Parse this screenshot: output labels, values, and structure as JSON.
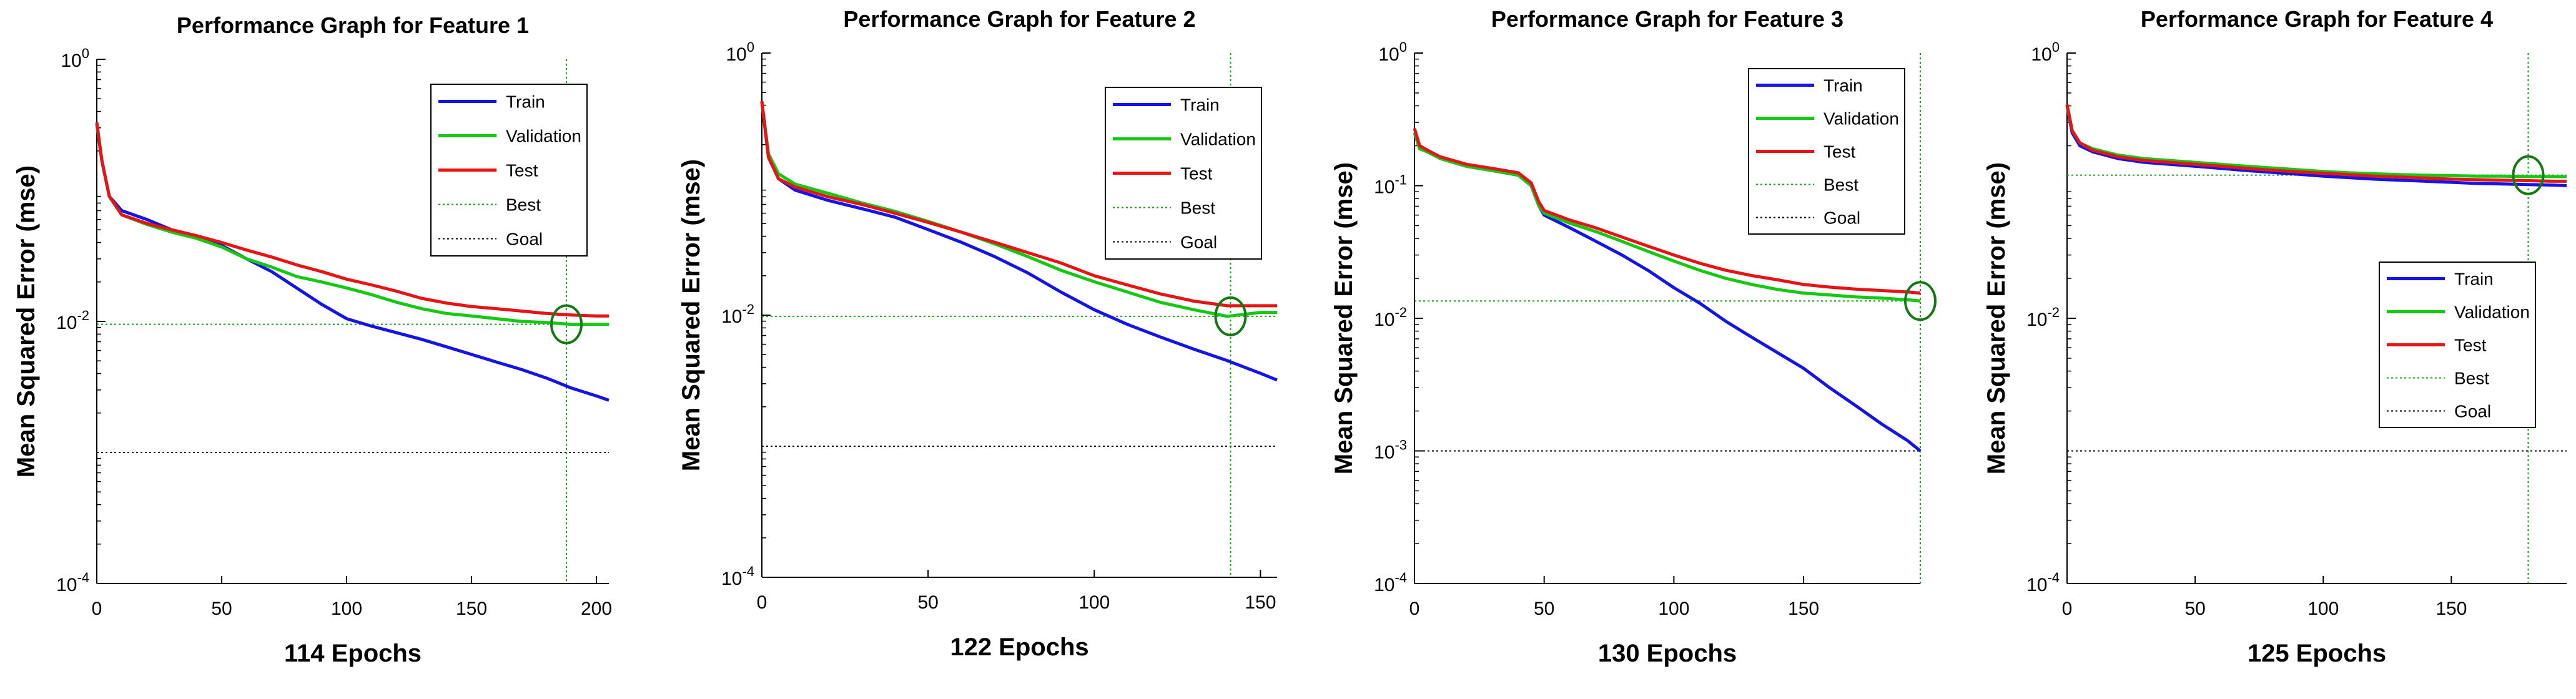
{
  "chart_data": [
    {
      "type": "line",
      "title": "Performance Graph for Feature 1",
      "xlabel": "114 Epochs",
      "ylabel": "Mean Squared Error  (mse)",
      "yscale": "log",
      "xlim": [
        0,
        205
      ],
      "ylim": [
        0.0001,
        1
      ],
      "xticks": [
        0,
        50,
        100,
        150,
        200
      ],
      "yticks": [
        {
          "base": "10",
          "exp": "0",
          "value": 1
        },
        {
          "base": "10",
          "exp": "-2",
          "value": 0.01
        },
        {
          "base": "10",
          "exp": "-4",
          "value": 0.0001
        }
      ],
      "legend_position": "top-right",
      "best_epoch": 188,
      "best_value": 0.0095,
      "goal": 0.001,
      "series": [
        {
          "name": "Train",
          "color": "#1414e6",
          "x": [
            0,
            2,
            5,
            10,
            20,
            30,
            40,
            50,
            60,
            70,
            80,
            90,
            100,
            110,
            120,
            130,
            140,
            150,
            160,
            170,
            180,
            190,
            200,
            205
          ],
          "y": [
            0.32,
            0.17,
            0.09,
            0.07,
            0.06,
            0.05,
            0.045,
            0.038,
            0.03,
            0.024,
            0.018,
            0.0135,
            0.0105,
            0.0092,
            0.0082,
            0.0073,
            0.0064,
            0.0056,
            0.0049,
            0.0043,
            0.0037,
            0.0031,
            0.0027,
            0.0025
          ]
        },
        {
          "name": "Validation",
          "color": "#14c814",
          "x": [
            0,
            2,
            5,
            10,
            20,
            30,
            40,
            50,
            60,
            70,
            80,
            90,
            100,
            110,
            120,
            130,
            140,
            150,
            160,
            170,
            180,
            190,
            200,
            205
          ],
          "y": [
            0.32,
            0.17,
            0.09,
            0.065,
            0.055,
            0.048,
            0.043,
            0.037,
            0.03,
            0.026,
            0.022,
            0.02,
            0.018,
            0.016,
            0.014,
            0.0125,
            0.0115,
            0.011,
            0.0105,
            0.01,
            0.0098,
            0.0095,
            0.0095,
            0.0095
          ]
        },
        {
          "name": "Test",
          "color": "#e61414",
          "x": [
            0,
            2,
            5,
            10,
            20,
            30,
            40,
            50,
            60,
            70,
            80,
            90,
            100,
            110,
            120,
            130,
            140,
            150,
            160,
            170,
            180,
            190,
            200,
            205
          ],
          "y": [
            0.33,
            0.17,
            0.09,
            0.065,
            0.056,
            0.05,
            0.045,
            0.04,
            0.035,
            0.031,
            0.027,
            0.024,
            0.021,
            0.019,
            0.017,
            0.015,
            0.0138,
            0.013,
            0.0125,
            0.012,
            0.0115,
            0.0112,
            0.011,
            0.011
          ]
        }
      ],
      "legend_labels": [
        "Train",
        "Validation",
        "Test",
        "Best",
        "Goal"
      ]
    },
    {
      "type": "line",
      "title": "Performance Graph for Feature 2",
      "xlabel": "122 Epochs",
      "ylabel": "Mean Squared Error  (mse)",
      "yscale": "log",
      "xlim": [
        0,
        155
      ],
      "ylim": [
        0.0001,
        1
      ],
      "xticks": [
        0,
        50,
        100,
        150
      ],
      "yticks": [
        {
          "base": "10",
          "exp": "0",
          "value": 1
        },
        {
          "base": "10",
          "exp": "-2",
          "value": 0.01
        },
        {
          "base": "10",
          "exp": "-4",
          "value": 0.0001
        }
      ],
      "legend_position": "top-right",
      "best_epoch": 141,
      "best_value": 0.0098,
      "goal": 0.001,
      "series": [
        {
          "name": "Train",
          "color": "#1414e6",
          "x": [
            0,
            2,
            5,
            10,
            20,
            30,
            40,
            50,
            60,
            70,
            80,
            90,
            100,
            110,
            120,
            130,
            140,
            150,
            155
          ],
          "y": [
            0.42,
            0.16,
            0.11,
            0.09,
            0.075,
            0.065,
            0.056,
            0.045,
            0.036,
            0.028,
            0.021,
            0.015,
            0.011,
            0.0085,
            0.0068,
            0.0055,
            0.0045,
            0.0036,
            0.0032
          ]
        },
        {
          "name": "Validation",
          "color": "#14c814",
          "x": [
            0,
            2,
            5,
            10,
            20,
            30,
            40,
            50,
            60,
            70,
            80,
            90,
            100,
            110,
            120,
            130,
            140,
            150,
            155
          ],
          "y": [
            0.42,
            0.17,
            0.12,
            0.1,
            0.085,
            0.072,
            0.062,
            0.052,
            0.043,
            0.035,
            0.028,
            0.022,
            0.018,
            0.015,
            0.0125,
            0.011,
            0.0098,
            0.0105,
            0.0105
          ]
        },
        {
          "name": "Test",
          "color": "#e61414",
          "x": [
            0,
            2,
            5,
            10,
            20,
            30,
            40,
            50,
            60,
            70,
            80,
            90,
            100,
            110,
            120,
            130,
            140,
            150,
            155
          ],
          "y": [
            0.43,
            0.16,
            0.11,
            0.095,
            0.08,
            0.07,
            0.06,
            0.051,
            0.043,
            0.036,
            0.03,
            0.025,
            0.02,
            0.017,
            0.0145,
            0.0128,
            0.0118,
            0.0118,
            0.0118
          ]
        }
      ],
      "legend_labels": [
        "Train",
        "Validation",
        "Test",
        "Best",
        "Goal"
      ]
    },
    {
      "type": "line",
      "title": "Performance Graph for Feature 3",
      "xlabel": "130 Epochs",
      "ylabel": "Mean Squared Error  (mse)",
      "yscale": "log",
      "xlim": [
        0,
        195
      ],
      "ylim": [
        0.0001,
        1
      ],
      "xticks": [
        0,
        50,
        100,
        150
      ],
      "yticks": [
        {
          "base": "10",
          "exp": "0",
          "value": 1
        },
        {
          "base": "10",
          "exp": "-1",
          "value": 0.1
        },
        {
          "base": "10",
          "exp": "-2",
          "value": 0.01
        },
        {
          "base": "10",
          "exp": "-3",
          "value": 0.001
        },
        {
          "base": "10",
          "exp": "-4",
          "value": 0.0001
        }
      ],
      "legend_position": "top-right",
      "best_epoch": 195,
      "best_value": 0.0135,
      "goal": 0.001,
      "series": [
        {
          "name": "Train",
          "color": "#1414e6",
          "x": [
            0,
            2,
            5,
            10,
            20,
            30,
            40,
            45,
            48,
            50,
            60,
            70,
            80,
            90,
            100,
            110,
            120,
            130,
            140,
            150,
            160,
            170,
            180,
            190,
            195
          ],
          "y": [
            0.25,
            0.19,
            0.18,
            0.16,
            0.14,
            0.13,
            0.12,
            0.1,
            0.07,
            0.06,
            0.048,
            0.038,
            0.03,
            0.023,
            0.017,
            0.013,
            0.0095,
            0.0072,
            0.0055,
            0.0042,
            0.003,
            0.0022,
            0.0016,
            0.0012,
            0.001
          ]
        },
        {
          "name": "Validation",
          "color": "#14c814",
          "x": [
            0,
            2,
            5,
            10,
            20,
            30,
            40,
            45,
            48,
            50,
            60,
            70,
            80,
            90,
            100,
            110,
            120,
            130,
            140,
            150,
            160,
            170,
            180,
            190,
            195
          ],
          "y": [
            0.25,
            0.19,
            0.18,
            0.16,
            0.14,
            0.13,
            0.12,
            0.1,
            0.07,
            0.062,
            0.052,
            0.045,
            0.038,
            0.032,
            0.027,
            0.023,
            0.02,
            0.018,
            0.0165,
            0.0155,
            0.015,
            0.0145,
            0.0142,
            0.0138,
            0.0135
          ]
        },
        {
          "name": "Test",
          "color": "#e61414",
          "x": [
            0,
            2,
            5,
            10,
            20,
            30,
            40,
            45,
            48,
            50,
            60,
            70,
            80,
            90,
            100,
            110,
            120,
            130,
            140,
            150,
            160,
            170,
            180,
            190,
            195
          ],
          "y": [
            0.27,
            0.2,
            0.185,
            0.165,
            0.145,
            0.135,
            0.125,
            0.105,
            0.075,
            0.065,
            0.055,
            0.048,
            0.041,
            0.035,
            0.03,
            0.026,
            0.023,
            0.021,
            0.0195,
            0.018,
            0.0172,
            0.0166,
            0.0162,
            0.0158,
            0.0155
          ]
        }
      ],
      "legend_labels": [
        "Train",
        "Validation",
        "Test",
        "Best",
        "Goal"
      ]
    },
    {
      "type": "line",
      "title": "Performance Graph for Feature 4",
      "xlabel": "125 Epochs",
      "ylabel": "Mean Squared Error  (mse)",
      "yscale": "log",
      "xlim": [
        0,
        195
      ],
      "ylim": [
        0.0001,
        1
      ],
      "xticks": [
        0,
        50,
        100,
        150
      ],
      "yticks": [
        {
          "base": "10",
          "exp": "0",
          "value": 1
        },
        {
          "base": "10",
          "exp": "-2",
          "value": 0.01
        },
        {
          "base": "10",
          "exp": "-4",
          "value": 0.0001
        }
      ],
      "legend_position": "center-right",
      "best_epoch": 180,
      "best_value": 0.12,
      "goal": 0.001,
      "series": [
        {
          "name": "Train",
          "color": "#1414e6",
          "x": [
            0,
            2,
            5,
            10,
            20,
            30,
            40,
            50,
            60,
            70,
            80,
            90,
            100,
            110,
            120,
            130,
            140,
            150,
            160,
            170,
            180,
            190,
            195
          ],
          "y": [
            0.4,
            0.25,
            0.2,
            0.18,
            0.16,
            0.15,
            0.145,
            0.14,
            0.135,
            0.13,
            0.126,
            0.122,
            0.118,
            0.115,
            0.112,
            0.11,
            0.108,
            0.106,
            0.104,
            0.103,
            0.102,
            0.101,
            0.1
          ]
        },
        {
          "name": "Validation",
          "color": "#14c814",
          "x": [
            0,
            2,
            5,
            10,
            20,
            30,
            40,
            50,
            60,
            70,
            80,
            90,
            100,
            110,
            120,
            130,
            140,
            150,
            160,
            170,
            180,
            190,
            195
          ],
          "y": [
            0.4,
            0.26,
            0.21,
            0.19,
            0.17,
            0.16,
            0.155,
            0.15,
            0.145,
            0.14,
            0.136,
            0.132,
            0.128,
            0.125,
            0.123,
            0.121,
            0.12,
            0.119,
            0.118,
            0.118,
            0.117,
            0.117,
            0.117
          ]
        },
        {
          "name": "Test",
          "color": "#e61414",
          "x": [
            0,
            2,
            5,
            10,
            20,
            30,
            40,
            50,
            60,
            70,
            80,
            90,
            100,
            110,
            120,
            130,
            140,
            150,
            160,
            170,
            180,
            190,
            195
          ],
          "y": [
            0.41,
            0.26,
            0.21,
            0.185,
            0.165,
            0.155,
            0.15,
            0.145,
            0.14,
            0.135,
            0.131,
            0.127,
            0.124,
            0.121,
            0.118,
            0.116,
            0.114,
            0.112,
            0.111,
            0.11,
            0.109,
            0.108,
            0.108
          ]
        }
      ],
      "legend_labels": [
        "Train",
        "Validation",
        "Test",
        "Best",
        "Goal"
      ]
    }
  ],
  "style": {
    "best_color": "#14a014",
    "goal_color": "#000000",
    "marker_color": "#147814"
  }
}
